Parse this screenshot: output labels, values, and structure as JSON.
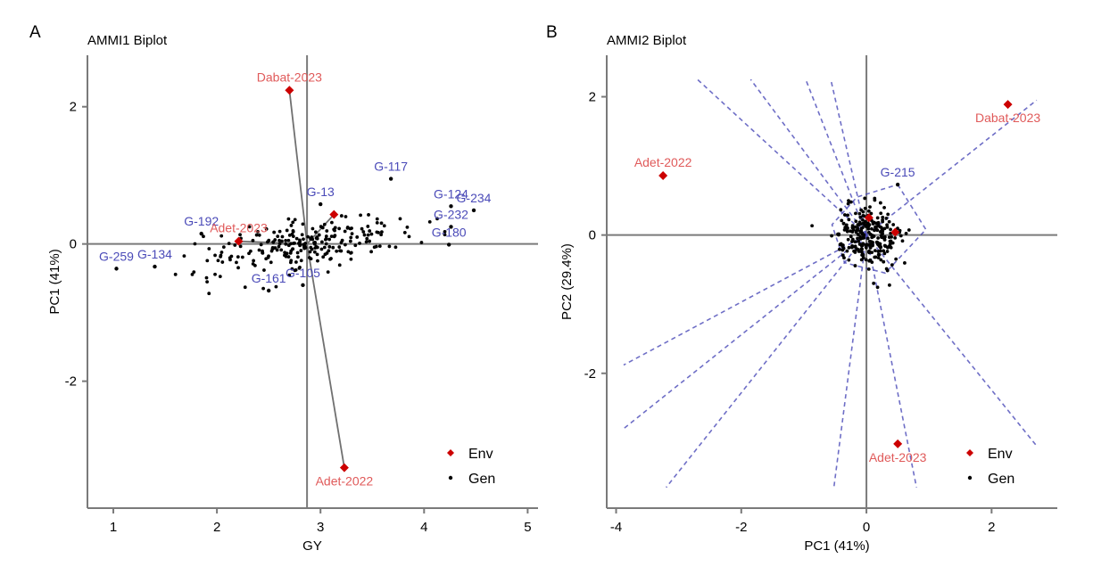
{
  "colors": {
    "env": "#cc0000",
    "env_label": "#e05a5a",
    "gen": "#000000",
    "gen_label": "#4a4ab8",
    "axis": "#7a7a7a",
    "sector_line": "#4a4ab8"
  },
  "chart_data": [
    {
      "id": "A",
      "panel_letter": "A",
      "type": "scatter",
      "title": "AMMI1 Biplot",
      "xlabel": "GY",
      "ylabel": "PC1 (41%)",
      "xlim": [
        0.75,
        5.1
      ],
      "ylim": [
        -3.85,
        2.75
      ],
      "xticks": [
        1,
        2,
        3,
        4,
        5
      ],
      "yticks": [
        -2,
        0,
        2
      ],
      "grid": false,
      "reference_lines": {
        "x": 2.87,
        "y": 0
      },
      "legend": {
        "position": "bottom-right",
        "entries": [
          {
            "label": "Env",
            "kind": "env"
          },
          {
            "label": "Gen",
            "kind": "gen"
          }
        ]
      },
      "environments": [
        {
          "name": "Dabat-2023",
          "x": 2.7,
          "y": 2.24
        },
        {
          "name": "Adet-2022",
          "x": 3.23,
          "y": -3.26
        },
        {
          "name": "Adet-2023",
          "x": 2.21,
          "y": 0.04
        },
        {
          "name": "Dabat-2022",
          "x": 3.13,
          "y": 0.43,
          "label_shown": false
        }
      ],
      "labeled_genotypes": [
        {
          "name": "G-259",
          "x": 1.03,
          "y": -0.36
        },
        {
          "name": "G-134",
          "x": 1.4,
          "y": -0.33
        },
        {
          "name": "G-192",
          "x": 1.85,
          "y": 0.15
        },
        {
          "name": "G-13",
          "x": 3.0,
          "y": 0.58
        },
        {
          "name": "G-161",
          "x": 2.5,
          "y": -0.68
        },
        {
          "name": "G-105",
          "x": 2.83,
          "y": -0.6
        },
        {
          "name": "G-117",
          "x": 3.68,
          "y": 0.95
        },
        {
          "name": "G-124",
          "x": 4.26,
          "y": 0.55
        },
        {
          "name": "G-234",
          "x": 4.48,
          "y": 0.49
        },
        {
          "name": "G-232",
          "x": 4.26,
          "y": 0.25
        },
        {
          "name": "G-180",
          "x": 4.24,
          "y": -0.01
        }
      ],
      "other_genotypes": {
        "count": 245,
        "x_range": [
          1.6,
          4.2
        ],
        "x_mean": 2.87,
        "y_sd": 0.18,
        "slope": 0.22
      }
    },
    {
      "id": "B",
      "panel_letter": "B",
      "type": "scatter",
      "title": "AMMI2 Biplot",
      "xlabel": "PC1 (41%)",
      "ylabel": "PC2 (29.4%)",
      "xlim": [
        -4.15,
        3.05
      ],
      "ylim": [
        -3.95,
        2.6
      ],
      "xticks": [
        -4,
        -2,
        0,
        2
      ],
      "yticks": [
        -2,
        0,
        2
      ],
      "grid": false,
      "reference_lines": {
        "x": 0,
        "y": 0
      },
      "legend": {
        "position": "bottom-right",
        "entries": [
          {
            "label": "Env",
            "kind": "env"
          },
          {
            "label": "Gen",
            "kind": "gen"
          }
        ]
      },
      "environments": [
        {
          "name": "Dabat-2023",
          "x": 2.26,
          "y": 1.89
        },
        {
          "name": "Adet-2022",
          "x": -3.25,
          "y": 0.86
        },
        {
          "name": "Adet-2023",
          "x": 0.5,
          "y": -3.02
        },
        {
          "name": "Dabat-2022",
          "x": 0.04,
          "y": 0.25,
          "label_shown": false
        },
        {
          "name": "Env-5",
          "x": 0.46,
          "y": 0.04,
          "label_shown": false
        }
      ],
      "labeled_genotypes": [
        {
          "name": "G-215",
          "x": 0.5,
          "y": 0.73
        }
      ],
      "polygon_vertices": [
        [
          0.5,
          0.73
        ],
        [
          0.95,
          0.08
        ],
        [
          0.3,
          -0.55
        ],
        [
          -0.35,
          -0.4
        ],
        [
          -0.55,
          0.15
        ],
        [
          -0.15,
          0.55
        ]
      ],
      "sector_rays": [
        {
          "end": [
            -2.7,
            2.25
          ]
        },
        {
          "end": [
            -1.85,
            2.25
          ]
        },
        {
          "end": [
            -0.97,
            2.25
          ]
        },
        {
          "end": [
            -0.57,
            2.25
          ]
        },
        {
          "end": [
            2.72,
            1.95
          ]
        },
        {
          "end": [
            2.72,
            -3.05
          ]
        },
        {
          "end": [
            0.8,
            -3.65
          ]
        },
        {
          "end": [
            -0.52,
            -3.65
          ]
        },
        {
          "end": [
            -3.2,
            -3.65
          ]
        },
        {
          "end": [
            -3.88,
            -2.8
          ]
        },
        {
          "end": [
            -3.88,
            -1.88
          ]
        }
      ],
      "other_genotypes": {
        "count": 250,
        "center": [
          0.0,
          -0.02
        ],
        "sd": [
          0.25,
          0.22
        ]
      }
    }
  ]
}
